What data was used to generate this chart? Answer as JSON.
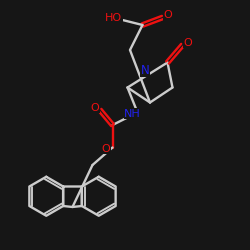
{
  "bg": "#161616",
  "bc": "#cccccc",
  "nc": "#2222ee",
  "oc": "#ee1111",
  "lw": 1.7,
  "dpi": 100,
  "xlim": [
    0,
    10
  ],
  "ylim": [
    0,
    10
  ]
}
